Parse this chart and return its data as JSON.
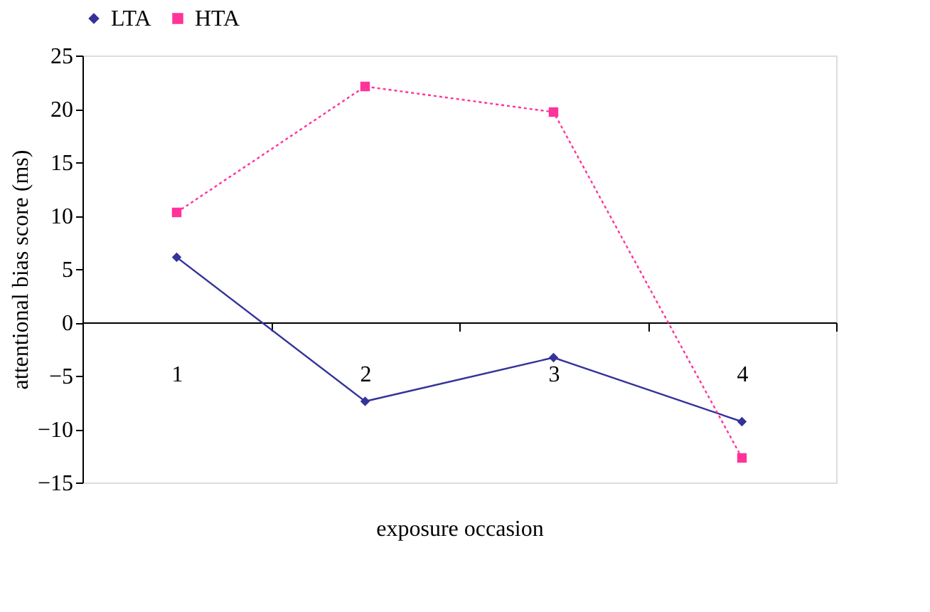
{
  "chart_data": {
    "type": "line",
    "xlabel": "exposure occasion",
    "ylabel": "attentional bias score (ms)",
    "categories": [
      "1",
      "2",
      "3",
      "4"
    ],
    "series": [
      {
        "name": "LTA",
        "color": "#333399",
        "values": [
          6.1,
          -7.4,
          -3.3,
          -9.3
        ],
        "marker": "diamond",
        "line_style": "solid"
      },
      {
        "name": "HTA",
        "color": "#ff3399",
        "values": [
          10.3,
          22.1,
          19.7,
          -12.7
        ],
        "marker": "square",
        "line_style": "dotted"
      }
    ],
    "ylim": [
      -15,
      25
    ],
    "yticks": [
      -15,
      -10,
      -5,
      0,
      5,
      10,
      15,
      20,
      25
    ],
    "grid": false,
    "legend": "top"
  }
}
